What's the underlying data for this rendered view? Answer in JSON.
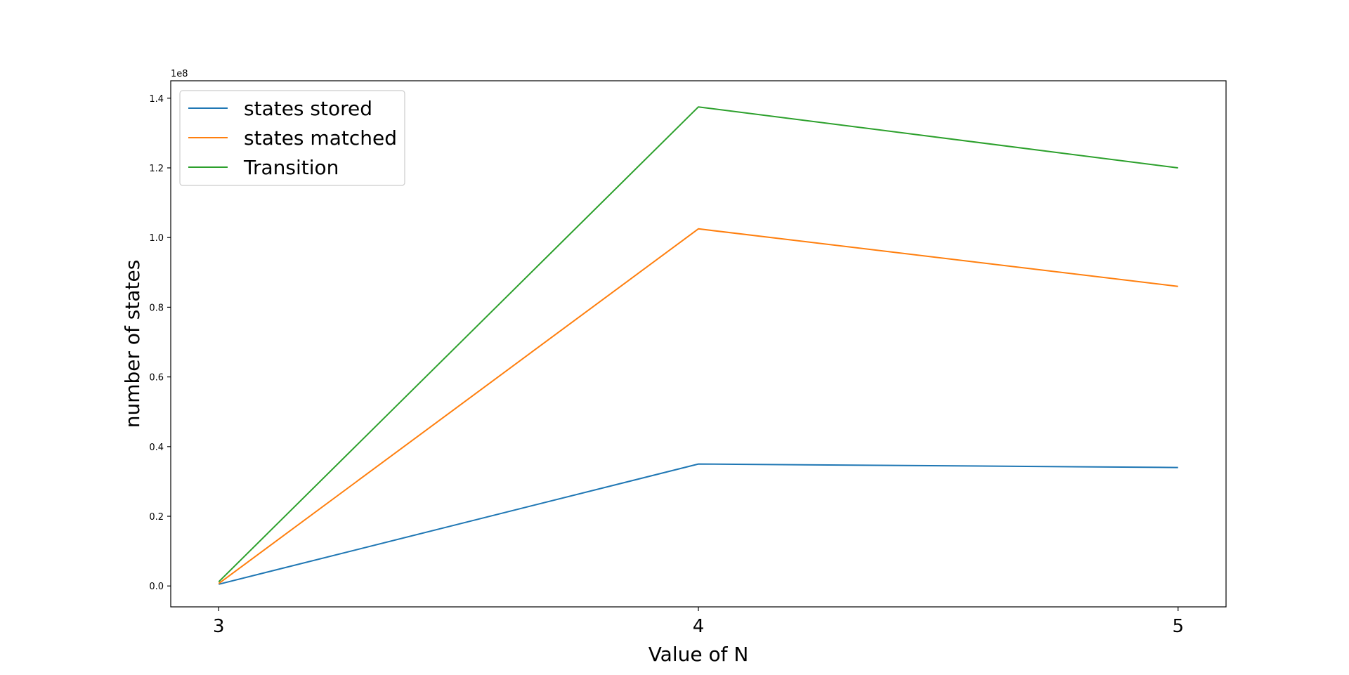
{
  "chart_data": {
    "type": "line",
    "title": "",
    "xlabel": "Value of N",
    "ylabel": "number of states",
    "x": [
      3,
      4,
      5
    ],
    "x_tick_labels": [
      "3",
      "4",
      "5"
    ],
    "y_tick_labels": [
      "0.0",
      "0.2",
      "0.4",
      "0.6",
      "0.8",
      "1.0",
      "1.2",
      "1.4"
    ],
    "y_offset_text": "1e8",
    "ylim": [
      -6000000,
      145000000
    ],
    "legend_position": "upper-left",
    "grid": false,
    "series": [
      {
        "name": "states stored",
        "color": "#1f77b4",
        "values": [
          500000,
          35000000,
          34000000
        ]
      },
      {
        "name": "states matched",
        "color": "#ff7f0e",
        "values": [
          700000,
          102500000,
          86000000
        ]
      },
      {
        "name": "Transition",
        "color": "#2ca02c",
        "values": [
          1200000,
          137500000,
          120000000
        ]
      }
    ]
  }
}
